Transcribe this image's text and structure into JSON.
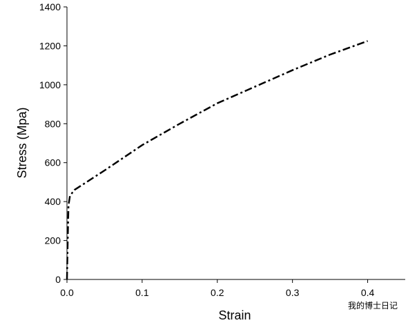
{
  "chart_data": {
    "type": "line",
    "x_label": "Strain",
    "y_label": "Stress (Mpa)",
    "x": [
      0,
      0.001,
      0.002,
      0.004,
      0.01,
      0.05,
      0.1,
      0.15,
      0.2,
      0.25,
      0.3,
      0.35,
      0.4
    ],
    "values": [
      0,
      200,
      380,
      430,
      460,
      560,
      690,
      800,
      905,
      990,
      1075,
      1155,
      1225
    ],
    "color": "#000000",
    "dash": "dash-dot",
    "xlim": [
      0,
      0.45
    ],
    "xticks": [
      {
        "value": 0,
        "label": "0.0"
      },
      0.1,
      0.2,
      0.3,
      0.4
    ],
    "ylim": [
      0,
      1400
    ],
    "yticks": [
      0,
      200,
      400,
      600,
      800,
      1000,
      1200,
      1400
    ],
    "grid": false,
    "watermark": "我的博士日记"
  }
}
